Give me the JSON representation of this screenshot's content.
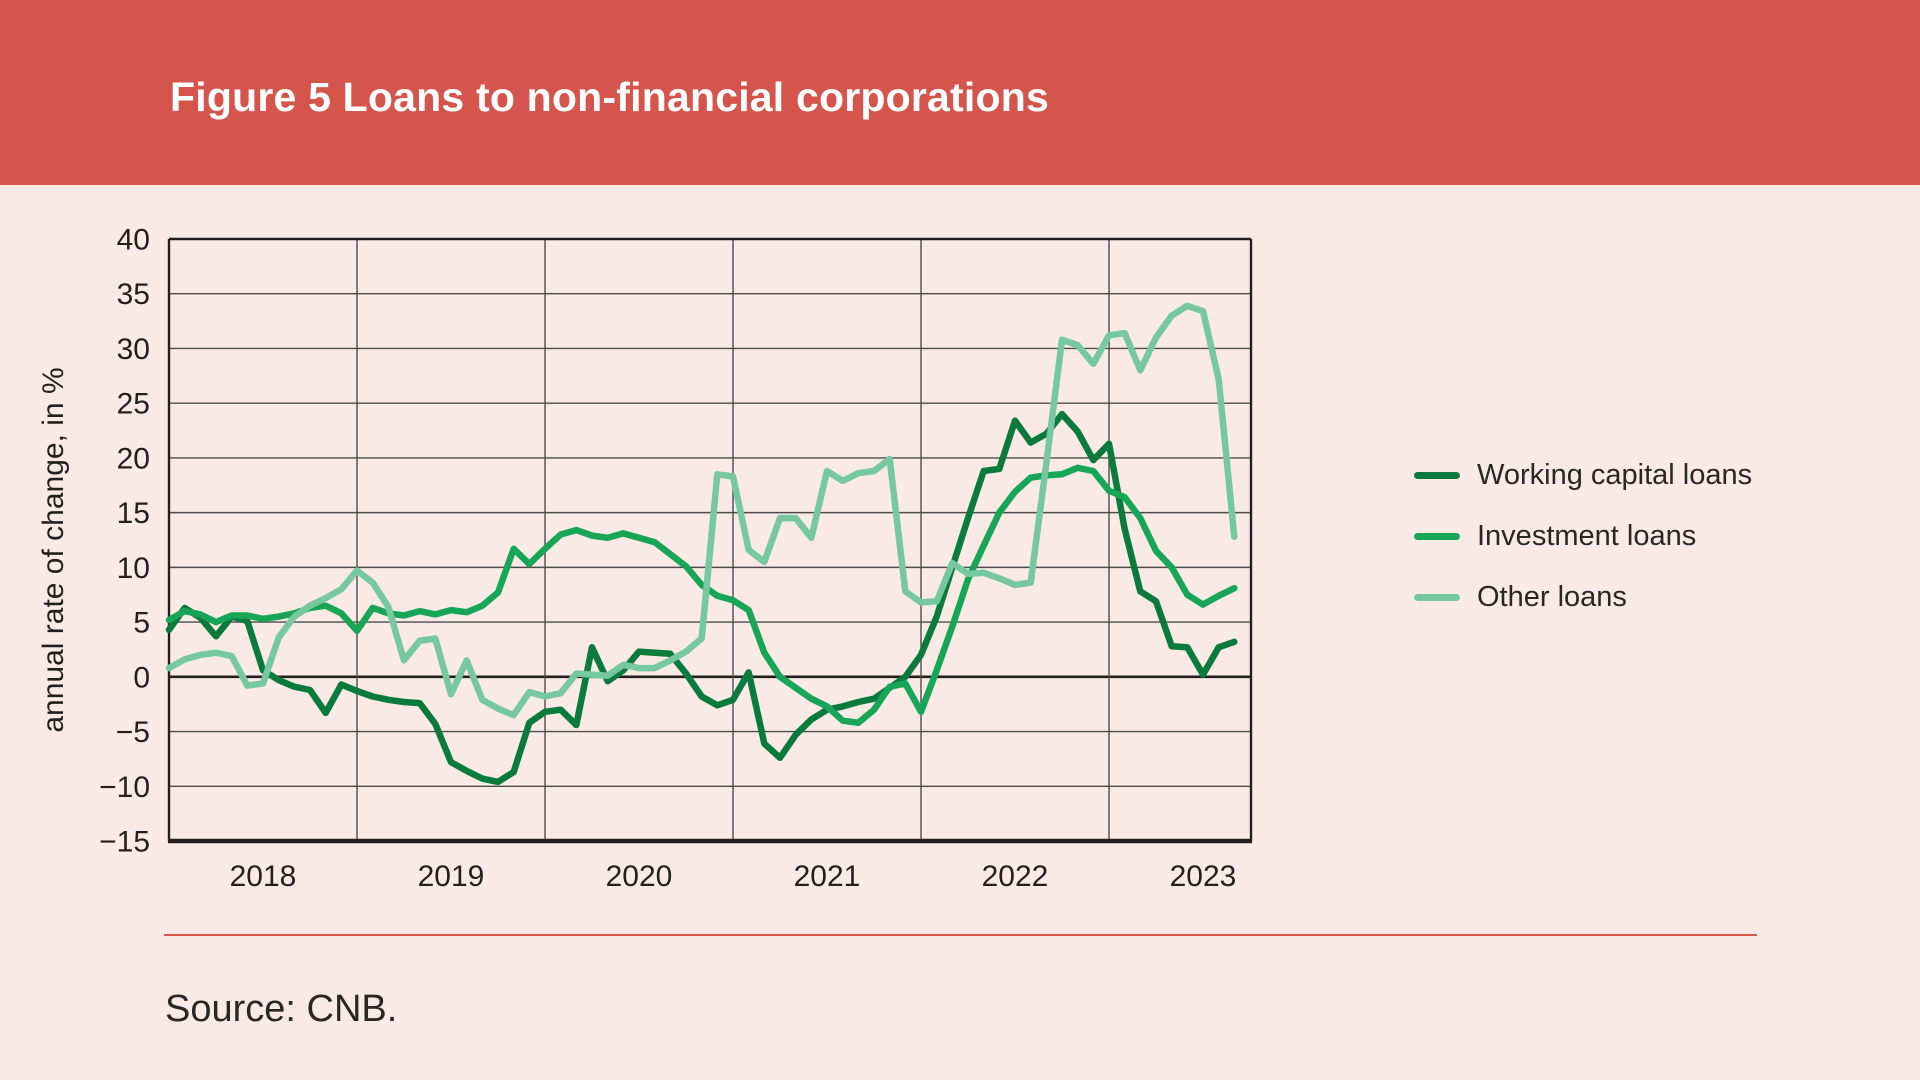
{
  "header": {
    "title": "Figure 5 Loans to non-financial corporations"
  },
  "source": {
    "text": "Source: CNB."
  },
  "colors": {
    "header_band": "#d5544b",
    "page_background": "#f9eae6",
    "separator_line": "#d5544b",
    "working_capital_loans": "#0a7b3d",
    "investment_loans": "#17a657",
    "other_loans": "#76c89e",
    "gridline": "#4c4c4e",
    "axis_frame": "#231f20"
  },
  "legend": {
    "items": [
      {
        "label": "Working capital loans",
        "color": "#0a7b3d"
      },
      {
        "label": "Investment loans",
        "color": "#17a657"
      },
      {
        "label": "Other loans",
        "color": "#76c89e"
      }
    ]
  },
  "chart_data": {
    "type": "line",
    "title": "Figure 5 Loans to non-financial corporations",
    "ylabel": "annual rate of change, in %",
    "xlabel": "",
    "ylim": [
      -15,
      40
    ],
    "grid": true,
    "legend_position": "right",
    "frequency": "monthly",
    "x_start": "2018-01",
    "x_end": "2023-09",
    "n_months": 69,
    "y_tick_values": [
      40,
      35,
      30,
      25,
      20,
      15,
      10,
      5,
      0,
      -5,
      -10,
      -15
    ],
    "y_tick_labels": [
      "40",
      "35",
      "30",
      "25",
      "20",
      "15",
      "10",
      "5",
      "0",
      "−5",
      "−10",
      "−15"
    ],
    "x_tick_labels": [
      "2018",
      "2019",
      "2020",
      "2021",
      "2022",
      "2023"
    ],
    "series": [
      {
        "name": "Working capital loans",
        "color": "#0a7b3d",
        "values": [
          4.3,
          6.3,
          5.4,
          3.7,
          5.5,
          5.1,
          0.6,
          -0.3,
          -0.9,
          -1.2,
          -3.3,
          -0.7,
          -1.3,
          -1.8,
          -2.1,
          -2.3,
          -2.4,
          -4.3,
          -7.8,
          -8.6,
          -9.3,
          -9.6,
          -8.7,
          -4.2,
          -3.2,
          -3.0,
          -4.4,
          2.7,
          -0.4,
          0.6,
          2.3,
          2.2,
          2.1,
          0.3,
          -1.8,
          -2.6,
          -2.1,
          0.4,
          -6.1,
          -7.4,
          -5.3,
          -3.9,
          -3.0,
          -2.7,
          -2.3,
          -2.0,
          -1.0,
          0.0,
          2.0,
          5.5,
          10.0,
          14.5,
          18.8,
          19.0,
          23.4,
          21.4,
          22.2,
          24.0,
          22.4,
          19.8,
          21.3,
          13.5,
          7.8,
          6.9,
          2.8,
          2.7,
          0.2,
          2.7,
          3.2
        ]
      },
      {
        "name": "Investment loans",
        "color": "#17a657",
        "values": [
          5.2,
          6.0,
          5.7,
          5.0,
          5.6,
          5.6,
          5.3,
          5.5,
          5.8,
          6.3,
          6.5,
          5.8,
          4.2,
          6.3,
          5.8,
          5.6,
          6.0,
          5.7,
          6.1,
          5.9,
          6.5,
          7.7,
          11.7,
          10.3,
          11.7,
          13.0,
          13.4,
          12.9,
          12.7,
          13.1,
          12.7,
          12.3,
          11.2,
          10.1,
          8.4,
          7.4,
          7.0,
          6.1,
          2.2,
          0.0,
          -1.0,
          -2.0,
          -2.7,
          -4.0,
          -4.2,
          -3.0,
          -0.9,
          -0.6,
          -3.2,
          0.6,
          4.6,
          8.9,
          12.0,
          15.0,
          16.9,
          18.2,
          18.4,
          18.5,
          19.1,
          18.8,
          17.0,
          16.4,
          14.5,
          11.5,
          10.0,
          7.5,
          6.6,
          7.4,
          8.1
        ]
      },
      {
        "name": "Other loans",
        "color": "#76c89e",
        "values": [
          0.8,
          1.6,
          2.0,
          2.2,
          1.9,
          -0.8,
          -0.6,
          3.6,
          5.5,
          6.5,
          7.2,
          8.0,
          9.7,
          8.6,
          6.4,
          1.5,
          3.3,
          3.5,
          -1.6,
          1.5,
          -2.1,
          -2.9,
          -3.5,
          -1.4,
          -1.8,
          -1.5,
          0.3,
          0.2,
          0.1,
          1.1,
          0.8,
          0.8,
          1.5,
          2.3,
          3.5,
          18.5,
          18.3,
          11.6,
          10.5,
          14.5,
          14.5,
          12.7,
          18.8,
          17.9,
          18.6,
          18.8,
          19.9,
          7.8,
          6.8,
          6.9,
          10.4,
          9.4,
          9.5,
          9.0,
          8.4,
          8.6,
          19.5,
          30.8,
          30.3,
          28.6,
          31.2,
          31.4,
          28.0,
          31.0,
          33.0,
          33.9,
          33.4,
          27.2,
          12.8
        ]
      }
    ]
  }
}
